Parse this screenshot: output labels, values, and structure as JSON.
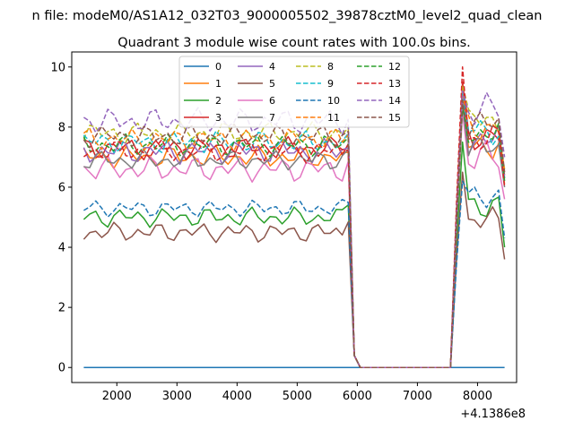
{
  "chart_data": {
    "type": "line",
    "suptitle": "n file: modeM0/AS1A12_032T03_9000005502_39878cztM0_level2_quad_clean",
    "title": "Quadrant 3 module wise count rates with 100.0s bins.",
    "xlabel": "",
    "ylabel": "",
    "xlim": [
      1250,
      8650
    ],
    "ylim": [
      -0.5,
      10.5
    ],
    "x_offset_label": "+4.1386e8",
    "xticks": [
      2000,
      3000,
      4000,
      5000,
      6000,
      7000,
      8000
    ],
    "yticks": [
      0,
      2,
      4,
      6,
      8,
      10
    ],
    "legend_position": "upper center",
    "x": {
      "start": 1450,
      "step": 100,
      "count": 71
    },
    "series": [
      {
        "name": "0",
        "color": "#1f77b4",
        "style": "solid",
        "base": 0,
        "jit": 0,
        "gap": 0,
        "peak": 0,
        "endv": 0
      },
      {
        "name": "1",
        "color": "#ff7f0e",
        "style": "solid",
        "base": 7.0,
        "jit": 0.4,
        "gap": 7.0,
        "peak": 9.2,
        "endv": 6.1
      },
      {
        "name": "2",
        "color": "#2ca02c",
        "style": "solid",
        "base": 5.0,
        "jit": 0.35,
        "gap": 5.5,
        "peak": 7.5,
        "endv": 4.0
      },
      {
        "name": "3",
        "color": "#d62728",
        "style": "solid",
        "base": 7.3,
        "jit": 0.4,
        "gap": 7.5,
        "peak": 9.5,
        "endv": 6.4
      },
      {
        "name": "4",
        "color": "#9467bd",
        "style": "solid",
        "base": 7.2,
        "jit": 0.45,
        "gap": 7.3,
        "peak": 9.0,
        "endv": 6.3
      },
      {
        "name": "5",
        "color": "#8c564b",
        "style": "solid",
        "base": 4.5,
        "jit": 0.35,
        "gap": 5.0,
        "peak": 6.5,
        "endv": 3.6
      },
      {
        "name": "6",
        "color": "#e377c2",
        "style": "solid",
        "base": 6.6,
        "jit": 0.45,
        "gap": 6.8,
        "peak": 8.5,
        "endv": 5.6
      },
      {
        "name": "7",
        "color": "#7f7f7f",
        "style": "solid",
        "base": 6.9,
        "jit": 0.35,
        "gap": 7.2,
        "peak": 8.8,
        "endv": 6.0
      },
      {
        "name": "8",
        "color": "#bcbd22",
        "style": "dashed",
        "base": 7.8,
        "jit": 0.4,
        "gap": 8.0,
        "peak": 9.4,
        "endv": 6.6
      },
      {
        "name": "9",
        "color": "#17becf",
        "style": "dashed",
        "base": 7.5,
        "jit": 0.4,
        "gap": 7.6,
        "peak": 9.1,
        "endv": 6.3
      },
      {
        "name": "10",
        "color": "#1f77b4",
        "style": "dashed",
        "base": 5.3,
        "jit": 0.3,
        "gap": 5.5,
        "peak": 6.2,
        "endv": 4.3
      },
      {
        "name": "11",
        "color": "#ff7f0e",
        "style": "dashed",
        "base": 7.6,
        "jit": 0.4,
        "gap": 7.8,
        "peak": 9.0,
        "endv": 6.5
      },
      {
        "name": "12",
        "color": "#2ca02c",
        "style": "dashed",
        "base": 7.4,
        "jit": 0.4,
        "gap": 7.6,
        "peak": 8.7,
        "endv": 6.2
      },
      {
        "name": "13",
        "color": "#d62728",
        "style": "dashed",
        "base": 7.2,
        "jit": 0.4,
        "gap": 7.4,
        "peak": 10.0,
        "endv": 6.0
      },
      {
        "name": "14",
        "color": "#9467bd",
        "style": "dashed",
        "base": 8.2,
        "jit": 0.45,
        "gap": 8.3,
        "peak": 9.2,
        "endv": 7.0
      },
      {
        "name": "15",
        "color": "#8c564b",
        "style": "dashed",
        "base": 7.7,
        "jit": 0.4,
        "gap": 7.8,
        "peak": 8.9,
        "endv": 6.5
      }
    ]
  }
}
